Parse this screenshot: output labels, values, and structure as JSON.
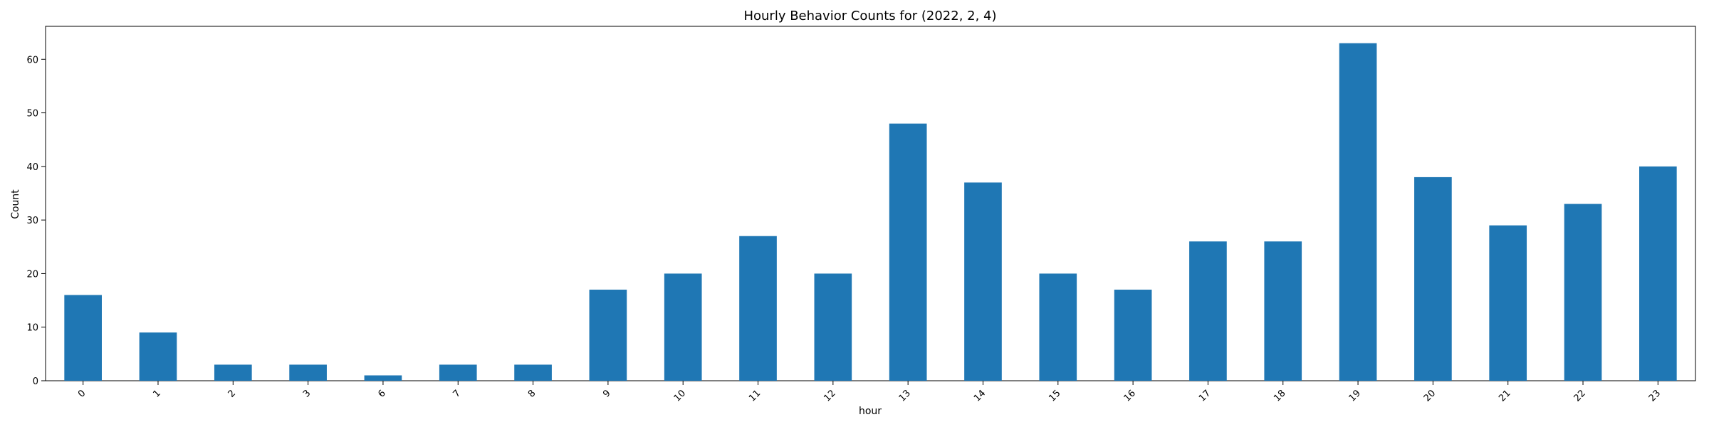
{
  "chart_data": {
    "type": "bar",
    "title": "Hourly Behavior Counts for (2022, 2, 4)",
    "xlabel": "hour",
    "ylabel": "Count",
    "categories": [
      "0",
      "1",
      "2",
      "3",
      "6",
      "7",
      "8",
      "9",
      "10",
      "11",
      "12",
      "13",
      "14",
      "15",
      "16",
      "17",
      "18",
      "19",
      "20",
      "21",
      "22",
      "23"
    ],
    "values": [
      16,
      9,
      3,
      3,
      1,
      3,
      3,
      17,
      20,
      27,
      20,
      48,
      37,
      20,
      17,
      26,
      26,
      63,
      38,
      29,
      33,
      40
    ],
    "ylim": [
      0,
      66.15
    ],
    "yticks": [
      0,
      10,
      20,
      30,
      40,
      50,
      60
    ],
    "xtick_rotation_deg": 45,
    "grid": false,
    "legend": "none",
    "bar_color": "#1f77b4"
  }
}
